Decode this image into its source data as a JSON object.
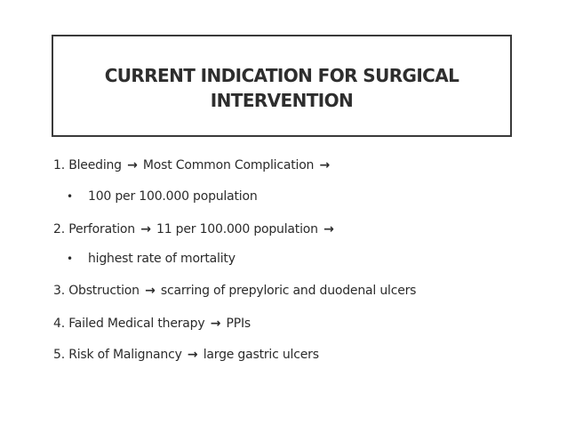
{
  "slide": {
    "title": "CURRENT INDICATION FOR SURGICAL INTERVENTION",
    "items": [
      {
        "text_a": "1. Bleeding ",
        "arrow": "→",
        "text_b": " Most Common Complication ",
        "arrow2": "→"
      },
      {
        "bullet": "•",
        "text": "100 per 100.000 population"
      },
      {
        "text_a": "2. Perforation ",
        "arrow": "→",
        "text_b": " 11 per 100.000 population ",
        "arrow2": "→"
      },
      {
        "bullet": "•",
        "text": "highest rate of mortality"
      },
      {
        "text_a": "3. Obstruction ",
        "arrow": "→",
        "text_b": " scarring of prepyloric and duodenal ulcers"
      },
      {
        "text_a": "4. Failed Medical therapy ",
        "arrow": "→",
        "text_b": " PPIs"
      },
      {
        "text_a": "5. Risk of Malignancy ",
        "arrow": "→",
        "text_b": " large gastric ulcers"
      }
    ]
  }
}
